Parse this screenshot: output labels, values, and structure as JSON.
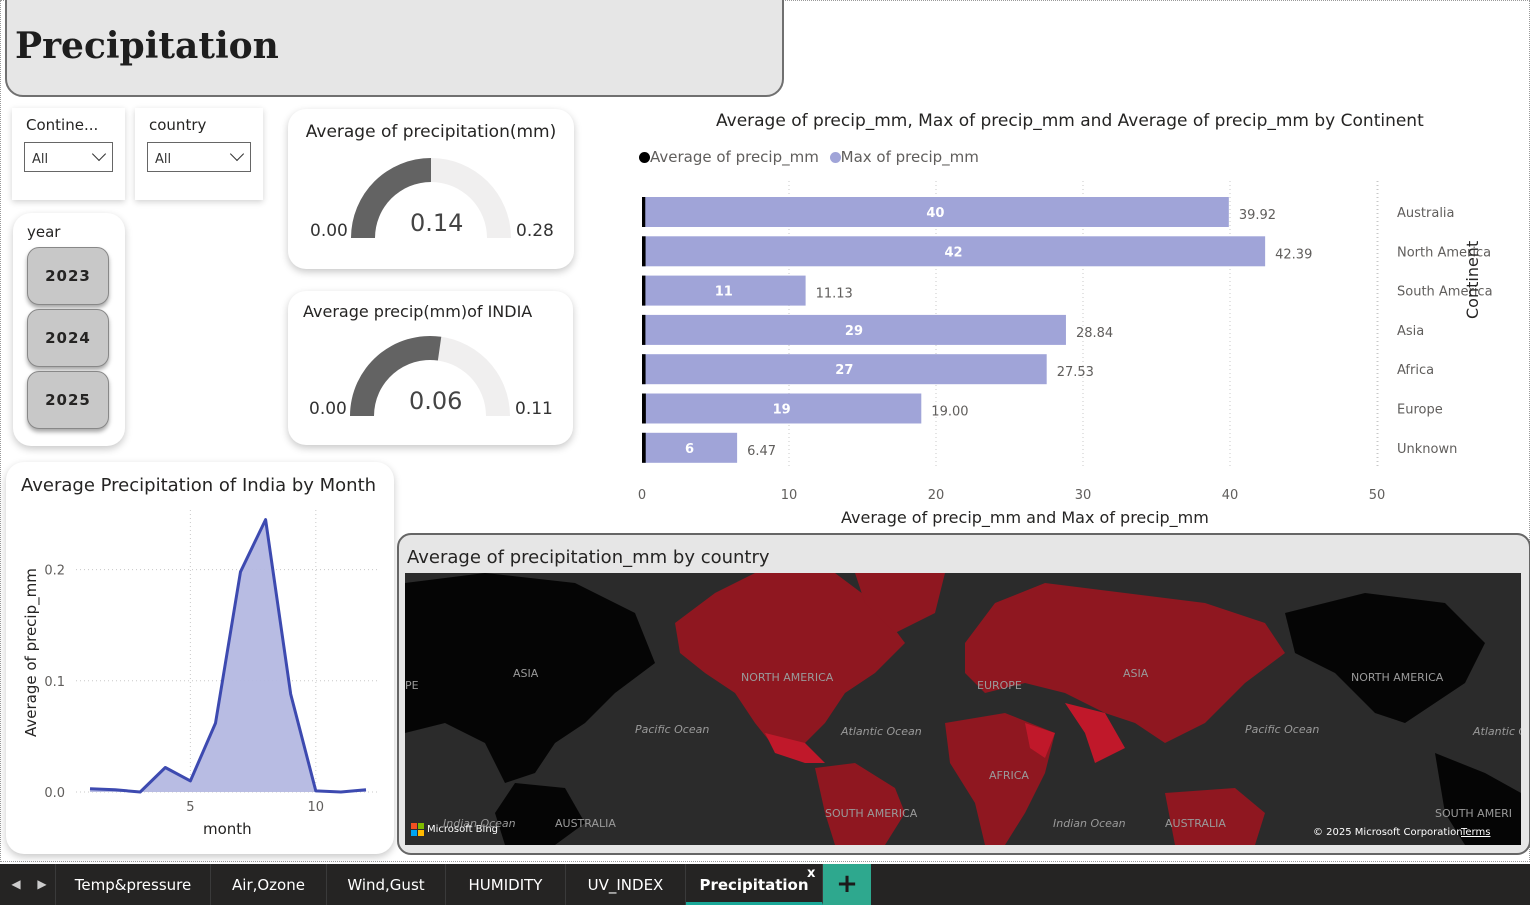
{
  "page": {
    "title": "Precipitation"
  },
  "slicers": {
    "continent": {
      "label": "Contine...",
      "value": "All"
    },
    "country": {
      "label": "country",
      "value": "All"
    },
    "year": {
      "label": "year",
      "options": [
        "2023",
        "2024",
        "2025"
      ]
    }
  },
  "gauges": [
    {
      "title": "Average of precipitation(mm)",
      "min": "0.00",
      "max": "0.28",
      "value": "0.14",
      "fraction": 0.5
    },
    {
      "title": "Average precip(mm)of INDIA",
      "min": "0.00",
      "max": "0.11",
      "value": "0.06",
      "fraction": 0.545
    }
  ],
  "bar_chart": {
    "title": "Average of precip_mm, Max of precip_mm and Average of precip_mm by Continent",
    "legend": [
      "Average of precip_mm",
      "Max of precip_mm"
    ],
    "xlabel": "Average of precip_mm and Max of precip_mm",
    "ylabel": "Continent",
    "ticks": [
      "0",
      "10",
      "20",
      "30",
      "40",
      "50"
    ]
  },
  "line_chart": {
    "title": "Average Precipitation of India by Month",
    "xlabel": "month",
    "ylabel": "Average of precip_mm",
    "xticks": [
      "5",
      "10"
    ],
    "yticks": [
      "0.0",
      "0.1",
      "0.2"
    ]
  },
  "chart_data": [
    {
      "type": "bar",
      "orientation": "horizontal",
      "categories": [
        "Australia",
        "North America",
        "South America",
        "Asia",
        "Africa",
        "Europe",
        "Unknown"
      ],
      "series": [
        {
          "name": "Average of precip_mm",
          "values": [
            0.12,
            0.14,
            0.13,
            0.13,
            0.14,
            0.16,
            0.15
          ]
        },
        {
          "name": "Max of precip_mm",
          "values": [
            39.92,
            42.39,
            11.13,
            28.84,
            27.53,
            19.0,
            6.47
          ]
        }
      ],
      "inner_labels": [
        "40",
        "42",
        "11",
        "29",
        "27",
        "19",
        "6"
      ],
      "end_labels": [
        "39.92",
        "42.39",
        "11.13",
        "28.84",
        "27.53",
        "19.00",
        "6.47"
      ],
      "xlim": [
        0,
        50
      ],
      "legend": "top-left",
      "grid": true,
      "colors": {
        "Average of precip_mm": "#000000",
        "Max of precip_mm": "#a0a4d8"
      }
    },
    {
      "type": "area",
      "x": [
        1,
        2,
        3,
        4,
        5,
        6,
        7,
        8,
        9,
        10,
        11,
        12
      ],
      "y": [
        0.003,
        0.002,
        0.0,
        0.022,
        0.01,
        0.062,
        0.198,
        0.245,
        0.088,
        0.001,
        0.0,
        0.002
      ],
      "xlim": [
        1,
        12
      ],
      "ylim": [
        0,
        0.25
      ],
      "grid": true,
      "colors": {
        "fill": "#b4b8e2",
        "line": "#3d4ab0"
      }
    }
  ],
  "map": {
    "title": "Average of precipitation_mm by country",
    "labels": {
      "asia_left": "ASIA",
      "na": "NORTH AMERICA",
      "europe": "EUROPE",
      "asia": "ASIA",
      "na_right": "NORTH AMERICA",
      "pacific_left": "Pacific Ocean",
      "atlantic": "Atlantic Ocean",
      "pacific_right": "Pacific Ocean",
      "atlantic_right": "Atlantic Oc",
      "africa": "AFRICA",
      "south_america": "SOUTH AMERICA",
      "south_america_right": "SOUTH AMERI",
      "indian_left": "Indian Ocean",
      "australia_left": "AUSTRALIA",
      "indian": "Indian Ocean",
      "australia": "AUSTRALIA",
      "pe": "PE"
    },
    "bing": "Microsoft Bing",
    "copyright": "© 2025 Microsoft Corporation",
    "terms": "Terms",
    "colors": {
      "ocean": "#2b2b2b",
      "land_nodata": "#050505",
      "land": "#8f1720",
      "land_high": "#c0182a"
    }
  },
  "tabs": [
    {
      "label": "Temp&pressure"
    },
    {
      "label": "Air,Ozone"
    },
    {
      "label": "Wind,Gust"
    },
    {
      "label": "HUMIDITY"
    },
    {
      "label": "UV_INDEX"
    },
    {
      "label": "Precipitation",
      "active": true
    }
  ],
  "tab_add": "+",
  "tab_close": "x"
}
